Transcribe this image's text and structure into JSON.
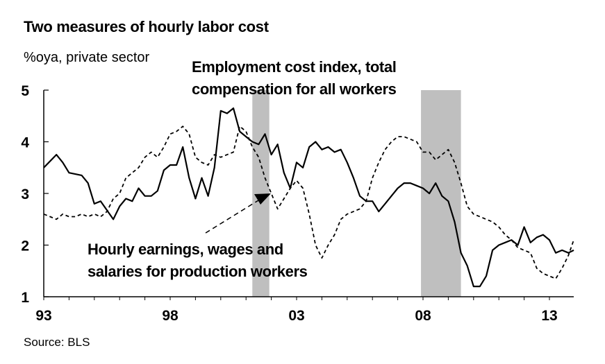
{
  "header": {
    "title": "Two measures of hourly labor cost",
    "subtitle": "%oya, private sector"
  },
  "footer": {
    "source": "Source: BLS"
  },
  "annotations": {
    "eci_line1": "Employment cost index, total",
    "eci_line2": "compensation for all workers",
    "ahe_line1": "Hourly earnings, wages and",
    "ahe_line2": "salaries for production workers"
  },
  "colors": {
    "line": "#000000",
    "recession": "#bfbfbf"
  },
  "chart_data": {
    "type": "line",
    "title": "Two measures of hourly labor cost",
    "subtitle": "%oya, private sector",
    "xlabel": "",
    "ylabel": "",
    "xlim": [
      1993.0,
      2014.0
    ],
    "ylim": [
      1,
      5
    ],
    "yticks": [
      1,
      2,
      3,
      4,
      5
    ],
    "xticks": [
      1993,
      1998,
      2003,
      2008,
      2013
    ],
    "xtick_labels": [
      "93",
      "98",
      "03",
      "08",
      "13"
    ],
    "grid": false,
    "legend": "none (series labelled by annotations)",
    "recession_shading": [
      [
        2001.25,
        2001.92
      ],
      [
        2007.92,
        2009.5
      ]
    ],
    "series": [
      {
        "name": "Employment cost index, total compensation for all workers",
        "style": "solid",
        "points": [
          [
            1993.0,
            3.5
          ],
          [
            1993.5,
            3.75
          ],
          [
            1993.75,
            3.6
          ],
          [
            1994.0,
            3.4
          ],
          [
            1994.5,
            3.35
          ],
          [
            1994.75,
            3.2
          ],
          [
            1995.0,
            2.8
          ],
          [
            1995.25,
            2.85
          ],
          [
            1995.75,
            2.5
          ],
          [
            1996.0,
            2.75
          ],
          [
            1996.25,
            2.9
          ],
          [
            1996.5,
            2.85
          ],
          [
            1996.75,
            3.1
          ],
          [
            1997.0,
            2.95
          ],
          [
            1997.25,
            2.95
          ],
          [
            1997.5,
            3.05
          ],
          [
            1997.75,
            3.45
          ],
          [
            1998.0,
            3.55
          ],
          [
            1998.25,
            3.55
          ],
          [
            1998.5,
            3.9
          ],
          [
            1998.75,
            3.3
          ],
          [
            1999.0,
            2.9
          ],
          [
            1999.25,
            3.3
          ],
          [
            1999.5,
            2.95
          ],
          [
            1999.75,
            3.5
          ],
          [
            2000.0,
            4.6
          ],
          [
            2000.25,
            4.55
          ],
          [
            2000.5,
            4.65
          ],
          [
            2000.75,
            4.2
          ],
          [
            2001.0,
            4.1
          ],
          [
            2001.25,
            4.0
          ],
          [
            2001.5,
            3.95
          ],
          [
            2001.75,
            4.15
          ],
          [
            2002.0,
            3.75
          ],
          [
            2002.25,
            3.95
          ],
          [
            2002.5,
            3.4
          ],
          [
            2002.75,
            3.1
          ],
          [
            2003.0,
            3.6
          ],
          [
            2003.25,
            3.5
          ],
          [
            2003.5,
            3.9
          ],
          [
            2003.75,
            4.0
          ],
          [
            2004.0,
            3.85
          ],
          [
            2004.25,
            3.9
          ],
          [
            2004.5,
            3.8
          ],
          [
            2004.75,
            3.85
          ],
          [
            2005.0,
            3.6
          ],
          [
            2005.25,
            3.3
          ],
          [
            2005.5,
            2.95
          ],
          [
            2005.75,
            2.85
          ],
          [
            2006.0,
            2.85
          ],
          [
            2006.25,
            2.65
          ],
          [
            2006.5,
            2.8
          ],
          [
            2006.75,
            2.95
          ],
          [
            2007.0,
            3.1
          ],
          [
            2007.25,
            3.2
          ],
          [
            2007.5,
            3.2
          ],
          [
            2007.75,
            3.15
          ],
          [
            2008.0,
            3.1
          ],
          [
            2008.25,
            3.0
          ],
          [
            2008.5,
            3.2
          ],
          [
            2008.75,
            2.95
          ],
          [
            2009.0,
            2.85
          ],
          [
            2009.25,
            2.45
          ],
          [
            2009.5,
            1.85
          ],
          [
            2009.75,
            1.6
          ],
          [
            2010.0,
            1.2
          ],
          [
            2010.25,
            1.2
          ],
          [
            2010.5,
            1.4
          ],
          [
            2010.75,
            1.9
          ],
          [
            2011.0,
            2.0
          ],
          [
            2011.25,
            2.05
          ],
          [
            2011.5,
            2.1
          ],
          [
            2011.75,
            2.0
          ],
          [
            2012.0,
            2.35
          ],
          [
            2012.25,
            2.05
          ],
          [
            2012.5,
            2.15
          ],
          [
            2012.75,
            2.2
          ],
          [
            2013.0,
            2.1
          ],
          [
            2013.25,
            1.85
          ],
          [
            2013.5,
            1.9
          ],
          [
            2013.75,
            1.85
          ],
          [
            2014.0,
            1.9
          ],
          [
            2014.25,
            1.9
          ],
          [
            2014.5,
            1.85
          ],
          [
            2014.75,
            1.95
          ]
        ]
      },
      {
        "name": "Hourly earnings, wages and salaries for production workers",
        "style": "dashed",
        "points": [
          [
            1993.0,
            2.6
          ],
          [
            1993.25,
            2.55
          ],
          [
            1993.5,
            2.5
          ],
          [
            1993.75,
            2.6
          ],
          [
            1994.0,
            2.55
          ],
          [
            1994.25,
            2.55
          ],
          [
            1994.5,
            2.6
          ],
          [
            1994.75,
            2.55
          ],
          [
            1995.0,
            2.6
          ],
          [
            1995.25,
            2.55
          ],
          [
            1995.5,
            2.65
          ],
          [
            1995.75,
            2.9
          ],
          [
            1996.0,
            3.0
          ],
          [
            1996.25,
            3.3
          ],
          [
            1996.5,
            3.4
          ],
          [
            1996.75,
            3.5
          ],
          [
            1997.0,
            3.7
          ],
          [
            1997.25,
            3.8
          ],
          [
            1997.5,
            3.7
          ],
          [
            1997.75,
            3.9
          ],
          [
            1998.0,
            4.15
          ],
          [
            1998.25,
            4.2
          ],
          [
            1998.5,
            4.3
          ],
          [
            1998.75,
            4.15
          ],
          [
            1999.0,
            3.7
          ],
          [
            1999.25,
            3.6
          ],
          [
            1999.5,
            3.55
          ],
          [
            1999.75,
            3.75
          ],
          [
            2000.0,
            3.7
          ],
          [
            2000.25,
            3.75
          ],
          [
            2000.5,
            3.8
          ],
          [
            2000.75,
            4.3
          ],
          [
            2001.0,
            4.2
          ],
          [
            2001.25,
            3.9
          ],
          [
            2001.5,
            3.7
          ],
          [
            2001.75,
            3.3
          ],
          [
            2002.0,
            3.0
          ],
          [
            2002.25,
            2.7
          ],
          [
            2002.5,
            2.9
          ],
          [
            2002.75,
            3.1
          ],
          [
            2003.0,
            3.25
          ],
          [
            2003.25,
            3.1
          ],
          [
            2003.5,
            2.6
          ],
          [
            2003.75,
            2.0
          ],
          [
            2004.0,
            1.75
          ],
          [
            2004.25,
            2.0
          ],
          [
            2004.5,
            2.2
          ],
          [
            2004.75,
            2.5
          ],
          [
            2005.0,
            2.6
          ],
          [
            2005.25,
            2.65
          ],
          [
            2005.5,
            2.7
          ],
          [
            2005.75,
            2.85
          ],
          [
            2006.0,
            3.3
          ],
          [
            2006.25,
            3.6
          ],
          [
            2006.5,
            3.85
          ],
          [
            2006.75,
            4.0
          ],
          [
            2007.0,
            4.1
          ],
          [
            2007.25,
            4.1
          ],
          [
            2007.5,
            4.05
          ],
          [
            2007.75,
            4.0
          ],
          [
            2008.0,
            3.8
          ],
          [
            2008.25,
            3.8
          ],
          [
            2008.5,
            3.65
          ],
          [
            2008.75,
            3.75
          ],
          [
            2009.0,
            3.85
          ],
          [
            2009.25,
            3.6
          ],
          [
            2009.5,
            3.2
          ],
          [
            2009.75,
            2.75
          ],
          [
            2010.0,
            2.6
          ],
          [
            2010.25,
            2.55
          ],
          [
            2010.5,
            2.5
          ],
          [
            2010.75,
            2.45
          ],
          [
            2011.0,
            2.35
          ],
          [
            2011.25,
            2.2
          ],
          [
            2011.5,
            2.1
          ],
          [
            2011.75,
            1.95
          ],
          [
            2012.0,
            1.9
          ],
          [
            2012.25,
            1.85
          ],
          [
            2012.5,
            1.55
          ],
          [
            2012.75,
            1.45
          ],
          [
            2013.0,
            1.4
          ],
          [
            2013.25,
            1.35
          ],
          [
            2013.5,
            1.55
          ],
          [
            2013.75,
            1.8
          ],
          [
            2014.0,
            2.1
          ],
          [
            2014.25,
            2.3
          ],
          [
            2014.5,
            2.2
          ],
          [
            2014.75,
            2.35
          ]
        ]
      }
    ]
  }
}
